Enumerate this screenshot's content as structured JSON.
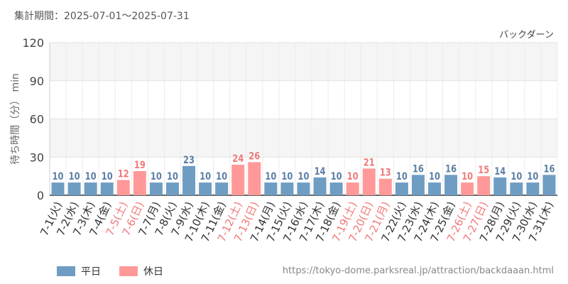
{
  "header": {
    "period_label": "集計期間：2025-07-01～2025-07-31",
    "attraction_name": "バックダーン"
  },
  "footer": {
    "source_url": "https://tokyo-dome.parksreal.jp/attraction/backdaaan.html"
  },
  "colors": {
    "weekday": "#6f9cc3",
    "holiday": "#ff9999",
    "weekday_text": "#5b7fa3",
    "holiday_text": "#f07a7a",
    "band": "#f5f5f5",
    "grid": "#e2e2e2",
    "axis_text": "#444444"
  },
  "chart_data": {
    "type": "bar",
    "ylabel": "待ち時間（分） min",
    "ylim": [
      0,
      120
    ],
    "yticks": [
      0,
      30,
      60,
      90,
      120
    ],
    "grid": true,
    "legend_position": "bottom-left",
    "categories": [
      "7-1(火)",
      "7-2(水)",
      "7-3(木)",
      "7-4(金)",
      "7-5(土)",
      "7-6(日)",
      "7-7(月)",
      "7-8(火)",
      "7-9(水)",
      "7-10(木)",
      "7-11(金)",
      "7-12(土)",
      "7-13(日)",
      "7-14(月)",
      "7-15(火)",
      "7-16(水)",
      "7-17(木)",
      "7-18(金)",
      "7-19(土)",
      "7-20(日)",
      "7-21(月)",
      "7-22(火)",
      "7-23(水)",
      "7-24(木)",
      "7-25(金)",
      "7-26(土)",
      "7-27(日)",
      "7-28(月)",
      "7-29(火)",
      "7-30(水)",
      "7-31(木)"
    ],
    "values": [
      10,
      10,
      10,
      10,
      12,
      19,
      10,
      10,
      23,
      10,
      10,
      24,
      26,
      10,
      10,
      10,
      14,
      10,
      10,
      21,
      13,
      10,
      16,
      10,
      16,
      10,
      15,
      14,
      10,
      10,
      16
    ],
    "is_holiday": [
      false,
      false,
      false,
      false,
      true,
      true,
      false,
      false,
      false,
      false,
      false,
      true,
      true,
      false,
      false,
      false,
      false,
      false,
      true,
      true,
      true,
      false,
      false,
      false,
      false,
      true,
      true,
      false,
      false,
      false,
      false
    ],
    "legend": [
      {
        "key": "weekday",
        "label": "平日"
      },
      {
        "key": "holiday",
        "label": "休日"
      }
    ]
  }
}
